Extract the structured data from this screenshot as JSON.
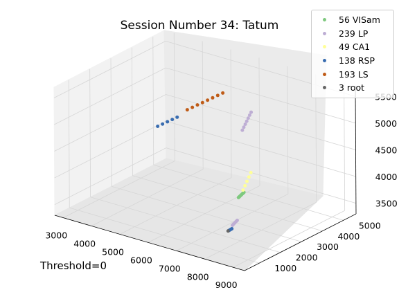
{
  "chart_data": {
    "type": "scatter",
    "projection": "3d",
    "title": "Session Number 34: Tatum",
    "annotation": "Threshold=0",
    "xlabel": "",
    "ylabel": "",
    "zlabel": "",
    "xlim": [
      2700,
      9400
    ],
    "ylim": [
      300,
      5600
    ],
    "zlim": [
      3300,
      5700
    ],
    "xticks": [
      "3000",
      "4000",
      "5000",
      "6000",
      "7000",
      "8000",
      "9000"
    ],
    "yticks": [
      "1000",
      "2000",
      "3000",
      "4000",
      "5000"
    ],
    "zticks": [
      "3500",
      "4000",
      "4500",
      "5000",
      "5500"
    ],
    "grid": true,
    "legend_position": "top-right",
    "series": [
      {
        "name": "56 VISam",
        "color": "#7fc97f",
        "points": [
          [
            6620,
            3760,
            3545
          ],
          [
            6640,
            3770,
            3560
          ],
          [
            6660,
            3780,
            3575
          ],
          [
            6680,
            3790,
            3590
          ],
          [
            6700,
            3800,
            3605
          ],
          [
            6720,
            3810,
            3620
          ],
          [
            6740,
            3820,
            3635
          ],
          [
            6760,
            3830,
            3650
          ]
        ]
      },
      {
        "name": "239 LP",
        "color": "#beaed4",
        "points": [
          [
            8780,
            570,
            4000
          ],
          [
            8800,
            600,
            4020
          ],
          [
            8820,
            630,
            4040
          ],
          [
            8840,
            660,
            4060
          ],
          [
            8860,
            690,
            4080
          ],
          [
            6970,
            3490,
            4915
          ],
          [
            7000,
            3520,
            4970
          ],
          [
            7030,
            3550,
            5025
          ],
          [
            7060,
            3580,
            5080
          ],
          [
            7090,
            3610,
            5135
          ],
          [
            7120,
            3640,
            5190
          ],
          [
            7150,
            3670,
            5245
          ]
        ]
      },
      {
        "name": "49 CA1",
        "color": "#ffff99",
        "points": [
          [
            6760,
            3790,
            3700
          ],
          [
            6800,
            3830,
            3780
          ],
          [
            6840,
            3870,
            3860
          ],
          [
            6880,
            3910,
            3940
          ],
          [
            6920,
            3950,
            4020
          ]
        ]
      },
      {
        "name": "138 RSP",
        "color": "#386cb0",
        "points": [
          [
            3000,
            4800,
            4110
          ],
          [
            3150,
            4830,
            4170
          ],
          [
            3300,
            4860,
            4230
          ],
          [
            3450,
            4890,
            4290
          ],
          [
            3600,
            4920,
            4350
          ],
          [
            8720,
            480,
            3910
          ],
          [
            8740,
            500,
            3920
          ],
          [
            8760,
            520,
            3930
          ],
          [
            8780,
            540,
            3940
          ]
        ]
      },
      {
        "name": "193 LS",
        "color": "#bf5b17",
        "points": [
          [
            3900,
            5000,
            4520
          ],
          [
            4050,
            5040,
            4580
          ],
          [
            4200,
            5080,
            4640
          ],
          [
            4350,
            5120,
            4700
          ],
          [
            4500,
            5160,
            4760
          ],
          [
            4650,
            5200,
            4820
          ],
          [
            4800,
            5240,
            4880
          ],
          [
            4950,
            5280,
            4940
          ]
        ]
      },
      {
        "name": "3 root",
        "color": "#666666",
        "points": [
          [
            8700,
            470,
            3900
          ]
        ]
      }
    ]
  }
}
